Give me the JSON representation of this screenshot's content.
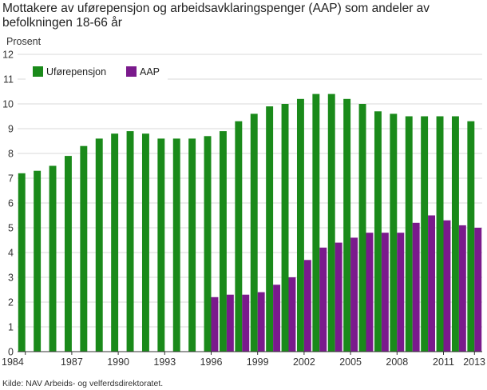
{
  "chart_data": {
    "type": "bar",
    "title": "Mottakere av uførepensjon og arbeidsavklaringspenger (AAP) som andeler av befolkningen 18-66 år",
    "ylabel": "Prosent",
    "xlabel": "",
    "ylim": [
      0,
      12
    ],
    "yticks": [
      0,
      1,
      2,
      3,
      4,
      5,
      6,
      7,
      8,
      9,
      10,
      11,
      12
    ],
    "grid": true,
    "legend_position": "top-left",
    "categories": [
      "1984",
      "1985",
      "1986",
      "1987",
      "1988",
      "1989",
      "1990",
      "1991",
      "1992",
      "1993",
      "1994",
      "1995",
      "1996",
      "1997",
      "1998",
      "1999",
      "2000",
      "2001",
      "2002",
      "2003",
      "2004",
      "2005",
      "2006",
      "2007",
      "2008",
      "2009",
      "2010",
      "2011",
      "2012",
      "2013"
    ],
    "x_tick_labels": [
      "1984",
      "1987",
      "1990",
      "1993",
      "1996",
      "1999",
      "2002",
      "2005",
      "2008",
      "2011",
      "2013"
    ],
    "series": [
      {
        "name": "Uførepensjon",
        "color": "#1a8a1a",
        "values": [
          7.2,
          7.3,
          7.5,
          7.9,
          8.3,
          8.6,
          8.8,
          8.9,
          8.8,
          8.6,
          8.6,
          8.6,
          8.7,
          8.9,
          9.3,
          9.6,
          9.9,
          10.0,
          10.2,
          10.4,
          10.4,
          10.2,
          10.0,
          9.7,
          9.6,
          9.5,
          9.5,
          9.5,
          9.5,
          9.3
        ]
      },
      {
        "name": "AAP",
        "color": "#7a1a8c",
        "values": [
          null,
          null,
          null,
          null,
          null,
          null,
          null,
          null,
          null,
          null,
          null,
          null,
          2.2,
          2.3,
          2.3,
          2.4,
          2.7,
          3.0,
          3.7,
          4.2,
          4.4,
          4.6,
          4.8,
          4.8,
          4.8,
          5.2,
          5.5,
          5.3,
          5.1,
          5.0
        ]
      }
    ],
    "source": "Kilde: NAV Arbeids- og velferdsdirektoratet."
  }
}
